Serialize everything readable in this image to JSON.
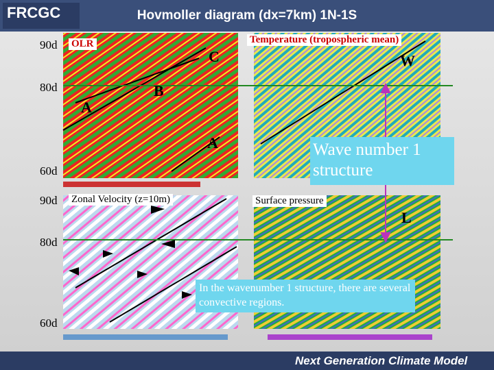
{
  "header": {
    "logo": "FRCGC",
    "title": "Hovmoller diagram (dx=7km) 1N-1S"
  },
  "panels": [
    {
      "label": "OLR"
    },
    {
      "label": "Temperature (tropospheric mean)"
    },
    {
      "label": "Zonal Velocity (z=10m)"
    },
    {
      "label": "Surface pressure"
    }
  ],
  "left_axis": {
    "top": [
      "90d",
      "80d",
      "60d"
    ],
    "bottom": [
      "90d",
      "80d",
      "60d"
    ]
  },
  "annotations": [
    "C",
    "W",
    "B",
    "A",
    "A",
    "L"
  ],
  "callouts": [
    "Wave number 1 structure",
    "In the wavenumber 1 structure, there are several convective regions."
  ],
  "footer": "Next Generation Climate Model"
}
